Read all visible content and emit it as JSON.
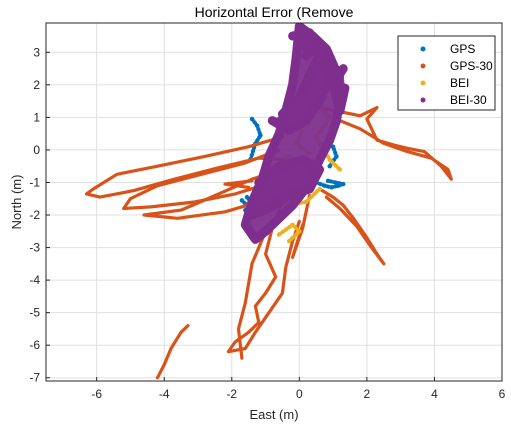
{
  "chart_data": {
    "type": "scatter",
    "title": "Horizontal Error (Remove",
    "xlabel": "East (m)",
    "ylabel": "North (m)",
    "xlim": [
      -7.5,
      6
    ],
    "ylim": [
      -7.1,
      3.9
    ],
    "xticks": [
      -6,
      -4,
      -2,
      0,
      2,
      4,
      6
    ],
    "yticks": [
      3,
      2,
      1,
      0,
      -1,
      -2,
      -3,
      -4,
      -5,
      -6,
      -7
    ],
    "grid": true,
    "legend_position": "top-right",
    "series": [
      {
        "name": "GPS",
        "color": "#0072BD",
        "marker": "dots",
        "paths": [
          [
            [
              -1.55,
              -1.45
            ],
            [
              -1.45,
              -1.6
            ],
            [
              -1.5,
              -1.75
            ],
            [
              -1.7,
              -1.55
            ],
            [
              -1.35,
              -1.9
            ],
            [
              -1.6,
              -1.85
            ]
          ],
          [
            [
              0.5,
              -1.0
            ],
            [
              0.75,
              -1.1
            ],
            [
              0.95,
              -1.15
            ],
            [
              1.15,
              -1.1
            ],
            [
              1.3,
              -1.05
            ],
            [
              0.85,
              -0.95
            ]
          ],
          [
            [
              -1.4,
              0.95
            ],
            [
              -1.25,
              0.75
            ],
            [
              -1.15,
              0.45
            ],
            [
              -1.3,
              0.2
            ],
            [
              -1.45,
              -0.3
            ]
          ],
          [
            [
              0.6,
              0.2
            ],
            [
              1.0,
              0.1
            ],
            [
              1.1,
              -0.2
            ],
            [
              0.9,
              -0.5
            ]
          ]
        ]
      },
      {
        "name": "GPS-30",
        "color": "#D95319",
        "marker": "line",
        "paths": [
          [
            [
              -0.5,
              0.4
            ],
            [
              -1.5,
              0.1
            ],
            [
              -2.8,
              -0.2
            ],
            [
              -4.2,
              -0.5
            ],
            [
              -5.4,
              -0.75
            ],
            [
              -6.1,
              -1.2
            ],
            [
              -6.3,
              -1.35
            ],
            [
              -5.9,
              -1.45
            ],
            [
              -4.9,
              -1.25
            ],
            [
              -3.7,
              -0.9
            ],
            [
              -2.4,
              -0.55
            ],
            [
              -1.2,
              -0.25
            ],
            [
              -0.3,
              -0.3
            ]
          ],
          [
            [
              -0.6,
              0.0
            ],
            [
              -1.6,
              -0.4
            ],
            [
              -2.9,
              -0.75
            ],
            [
              -4.2,
              -1.1
            ],
            [
              -5.0,
              -1.5
            ],
            [
              -5.2,
              -1.8
            ],
            [
              -4.4,
              -1.75
            ],
            [
              -3.1,
              -1.6
            ],
            [
              -1.9,
              -1.35
            ],
            [
              -0.8,
              -1.0
            ]
          ],
          [
            [
              -0.4,
              -0.55
            ],
            [
              -1.4,
              -0.9
            ],
            [
              -2.6,
              -1.45
            ],
            [
              -3.5,
              -1.85
            ],
            [
              -4.6,
              -2.0
            ],
            [
              -3.6,
              -2.1
            ],
            [
              -2.2,
              -1.9
            ],
            [
              -1.2,
              -1.6
            ]
          ],
          [
            [
              0.5,
              1.3
            ],
            [
              1.1,
              1.2
            ],
            [
              1.8,
              1.05
            ],
            [
              2.3,
              1.3
            ],
            [
              2.0,
              0.95
            ],
            [
              2.3,
              0.3
            ],
            [
              2.8,
              0.15
            ],
            [
              3.2,
              0.05
            ],
            [
              3.7,
              -0.05
            ],
            [
              4.2,
              -0.5
            ],
            [
              4.5,
              -0.9
            ],
            [
              4.4,
              -0.6
            ],
            [
              3.9,
              -0.25
            ],
            [
              3.2,
              -0.05
            ],
            [
              2.5,
              0.2
            ],
            [
              1.8,
              0.65
            ],
            [
              1.2,
              0.9
            ]
          ],
          [
            [
              0.6,
              -1.2
            ],
            [
              1.0,
              -1.45
            ],
            [
              1.3,
              -1.7
            ],
            [
              1.6,
              -2.1
            ],
            [
              2.0,
              -2.7
            ],
            [
              2.3,
              -3.2
            ],
            [
              2.5,
              -3.5
            ],
            [
              2.1,
              -2.95
            ],
            [
              1.7,
              -2.35
            ],
            [
              1.2,
              -1.8
            ],
            [
              0.8,
              -1.45
            ]
          ],
          [
            [
              -0.3,
              -0.8
            ],
            [
              -0.5,
              -1.6
            ],
            [
              -0.8,
              -2.4
            ],
            [
              -1.0,
              -3.2
            ],
            [
              -0.7,
              -3.9
            ],
            [
              -1.0,
              -4.4
            ],
            [
              -1.3,
              -4.8
            ],
            [
              -1.2,
              -5.3
            ],
            [
              -1.5,
              -5.6
            ],
            [
              -1.9,
              -5.9
            ],
            [
              -2.1,
              -6.2
            ],
            [
              -1.6,
              -6.1
            ],
            [
              -1.3,
              -5.6
            ],
            [
              -0.9,
              -5.0
            ],
            [
              -0.5,
              -4.4
            ],
            [
              -0.4,
              -3.6
            ],
            [
              -0.2,
              -2.8
            ],
            [
              0.0,
              -2.2
            ]
          ],
          [
            [
              -1.0,
              -2.5
            ],
            [
              -1.4,
              -3.5
            ],
            [
              -1.6,
              -4.7
            ],
            [
              -1.8,
              -5.5
            ],
            [
              -1.7,
              -6.4
            ]
          ],
          [
            [
              0.3,
              -1.4
            ],
            [
              0.1,
              -2.4
            ],
            [
              -0.2,
              -3.3
            ],
            [
              0.1,
              -2.3
            ]
          ],
          [
            [
              -4.2,
              -7.0
            ],
            [
              -4.0,
              -6.6
            ],
            [
              -3.8,
              -6.1
            ],
            [
              -3.5,
              -5.6
            ],
            [
              -3.3,
              -5.4
            ]
          ],
          [
            [
              -1.5,
              -1.15
            ],
            [
              -2.2,
              -1.05
            ],
            [
              -1.4,
              -0.95
            ]
          ]
        ]
      },
      {
        "name": "BEI",
        "color": "#EDB120",
        "marker": "dots",
        "paths": [
          [
            [
              -1.1,
              -1.4
            ],
            [
              -0.7,
              -0.9
            ],
            [
              -0.4,
              -1.3
            ],
            [
              0.2,
              -1.1
            ],
            [
              0.5,
              -0.8
            ],
            [
              0.1,
              -0.5
            ],
            [
              -0.3,
              -0.2
            ],
            [
              -0.6,
              -0.6
            ],
            [
              -0.9,
              -1.2
            ],
            [
              -0.4,
              -1.7
            ],
            [
              0.2,
              -1.6
            ],
            [
              0.6,
              -1.2
            ]
          ],
          [
            [
              -0.6,
              -2.6
            ],
            [
              -0.2,
              -2.3
            ],
            [
              0.0,
              -2.5
            ],
            [
              -0.3,
              -2.8
            ]
          ],
          [
            [
              0.6,
              1.3
            ],
            [
              0.9,
              1.0
            ],
            [
              0.5,
              0.4
            ],
            [
              0.9,
              -0.3
            ],
            [
              1.2,
              -0.6
            ]
          ],
          [
            [
              -0.3,
              0.9
            ],
            [
              0.1,
              0.6
            ],
            [
              -0.1,
              0.2
            ],
            [
              0.3,
              -0.1
            ]
          ]
        ]
      },
      {
        "name": "BEI-30",
        "color": "#7E2F8E",
        "marker": "dots",
        "paths": [
          [
            [
              0.0,
              3.8
            ],
            [
              0.4,
              3.5
            ],
            [
              0.8,
              3.1
            ],
            [
              1.1,
              2.4
            ],
            [
              1.2,
              1.6
            ],
            [
              1.1,
              0.9
            ],
            [
              0.9,
              0.3
            ],
            [
              0.6,
              -0.3
            ],
            [
              0.4,
              -0.8
            ],
            [
              0.1,
              -1.3
            ],
            [
              -0.2,
              -1.7
            ],
            [
              -0.6,
              -2.1
            ],
            [
              -1.0,
              -2.5
            ],
            [
              -1.3,
              -2.75
            ],
            [
              -1.6,
              -2.3
            ],
            [
              -1.4,
              -1.6
            ],
            [
              -1.1,
              -0.9
            ],
            [
              -0.9,
              -0.2
            ],
            [
              -0.6,
              0.5
            ],
            [
              -0.4,
              1.2
            ],
            [
              -0.2,
              2.0
            ],
            [
              -0.1,
              2.8
            ],
            [
              0.0,
              3.8
            ]
          ],
          [
            [
              -0.8,
              0.9
            ],
            [
              -0.3,
              0.6
            ],
            [
              0.2,
              0.9
            ],
            [
              0.6,
              1.5
            ],
            [
              0.9,
              2.2
            ],
            [
              0.6,
              2.9
            ],
            [
              0.3,
              2.3
            ],
            [
              0.0,
              1.6
            ],
            [
              -0.5,
              1.1
            ]
          ],
          [
            [
              -1.2,
              -1.0
            ],
            [
              -0.6,
              -0.5
            ],
            [
              0.1,
              -0.3
            ],
            [
              0.6,
              -0.6
            ],
            [
              0.3,
              -1.2
            ],
            [
              -0.3,
              -1.4
            ],
            [
              -0.9,
              -1.8
            ],
            [
              -1.4,
              -2.0
            ]
          ],
          [
            [
              1.3,
              2.5
            ],
            [
              1.0,
              2.0
            ],
            [
              1.2,
              1.2
            ],
            [
              1.35,
              1.9
            ]
          ],
          [
            [
              -0.2,
              3.5
            ],
            [
              0.3,
              3.6
            ],
            [
              0.6,
              3.2
            ],
            [
              0.2,
              2.9
            ]
          ]
        ]
      }
    ]
  }
}
